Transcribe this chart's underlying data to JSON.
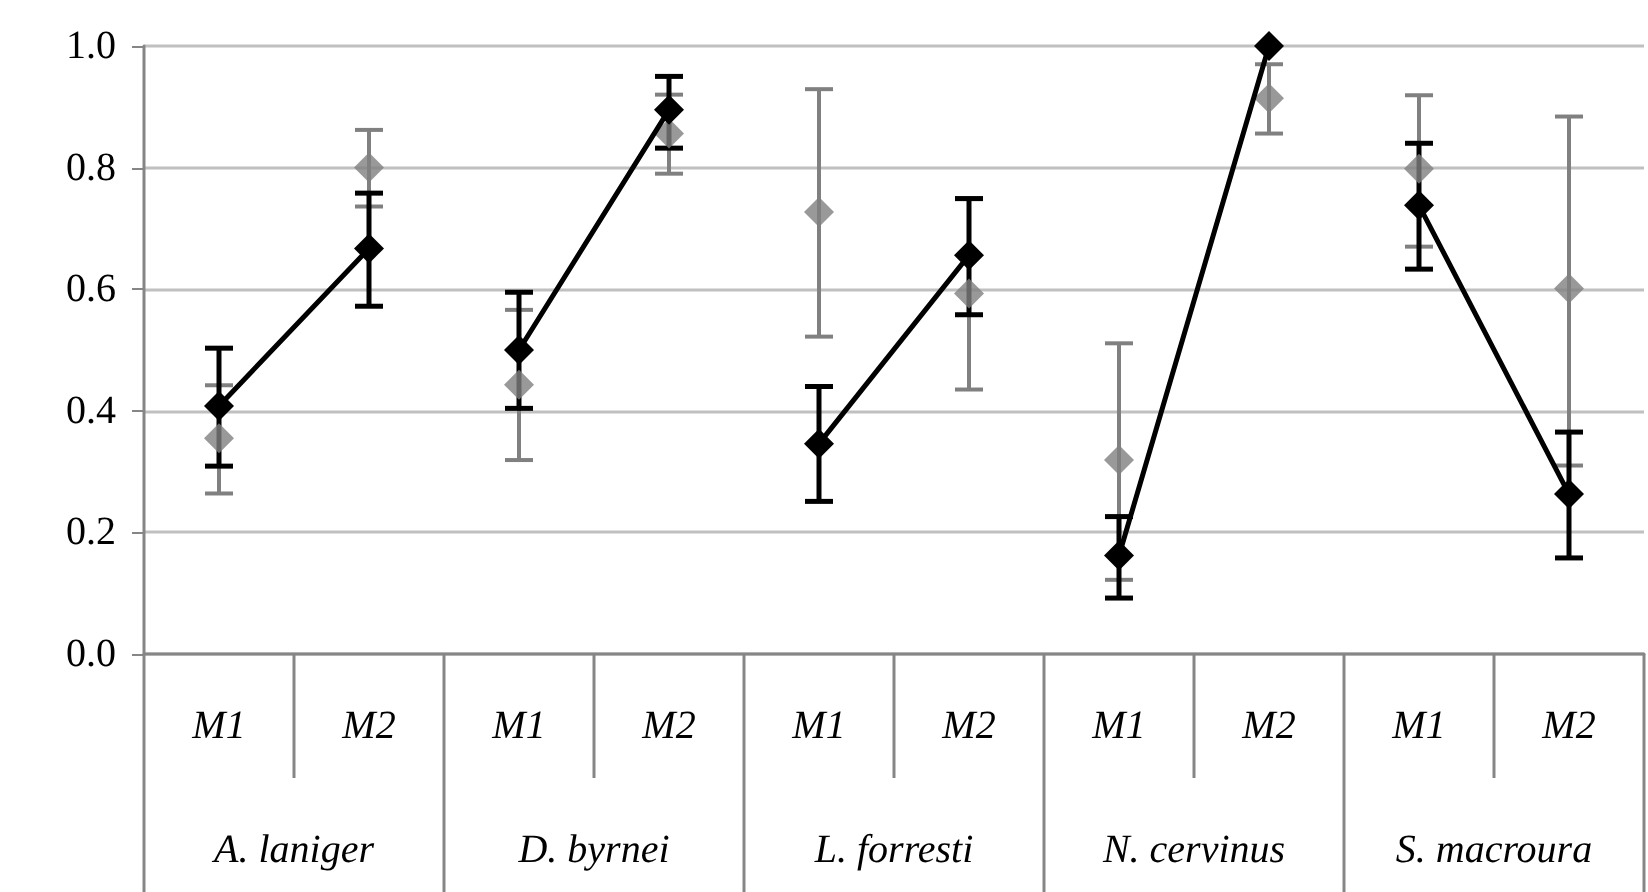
{
  "chart_data": {
    "type": "line",
    "categories": [
      "M1",
      "M2",
      "M1",
      "M2",
      "M1",
      "M2",
      "M1",
      "M2",
      "M1",
      "M2"
    ],
    "annotations": [
      "A. laniger",
      "D. byrnei",
      "L. forresti",
      "N. cervinus",
      "S. macroura"
    ],
    "ylim": [
      0,
      1
    ],
    "yticks": [
      {
        "value": 0,
        "label": "0.0"
      },
      {
        "value": 0.2,
        "label": "0.2"
      },
      {
        "value": 0.4,
        "label": "0.4"
      },
      {
        "value": 0.6,
        "label": "0.6"
      },
      {
        "value": 0.8,
        "label": "0.8"
      },
      {
        "value": 1,
        "label": "1.0"
      }
    ],
    "grid": "y",
    "marker": "diamond",
    "line_style": "solid",
    "series": [
      {
        "type": "scatter",
        "color": "#808080",
        "values": [
          0.355,
          0.8,
          0.443,
          0.856,
          0.727,
          0.593,
          0.319,
          0.914,
          0.798,
          0.601
        ],
        "errors": [
          [
            0.264,
            0.442
          ],
          [
            0.736,
            0.862
          ],
          [
            0.319,
            0.566
          ],
          [
            0.79,
            0.92
          ],
          [
            0.522,
            0.929
          ],
          [
            0.435,
            0.75
          ],
          [
            0.122,
            0.511
          ],
          [
            0.856,
            0.97
          ],
          [
            0.67,
            0.919
          ],
          [
            0.31,
            0.884
          ]
        ]
      },
      {
        "color": "#000000",
        "values": [
          0.408,
          0.667,
          null,
          null,
          null,
          null,
          null,
          null,
          null,
          null
        ],
        "errors": [
          [
            0.309,
            0.503
          ],
          [
            0.572,
            0.758
          ],
          null,
          null,
          null,
          null,
          null,
          null,
          null,
          null
        ]
      },
      {
        "color": "#000000",
        "values": [
          null,
          null,
          0.5,
          0.895,
          null,
          null,
          null,
          null,
          null,
          null
        ],
        "errors": [
          null,
          null,
          [
            0.404,
            0.595
          ],
          [
            0.832,
            0.95
          ],
          null,
          null,
          null,
          null,
          null,
          null
        ]
      },
      {
        "color": "#000000",
        "values": [
          null,
          null,
          null,
          null,
          0.346,
          0.656,
          null,
          null,
          null,
          null
        ],
        "errors": [
          null,
          null,
          null,
          null,
          [
            0.251,
            0.44
          ],
          [
            0.558,
            0.749
          ],
          null,
          null,
          null,
          null
        ]
      },
      {
        "color": "#000000",
        "values": [
          null,
          null,
          null,
          null,
          null,
          null,
          0.162,
          1.0,
          null,
          null
        ],
        "errors": [
          null,
          null,
          null,
          null,
          null,
          null,
          [
            0.092,
            0.226
          ],
          null,
          null,
          null
        ]
      },
      {
        "color": "#000000",
        "values": [
          null,
          null,
          null,
          null,
          null,
          null,
          null,
          null,
          0.738,
          0.263
        ],
        "errors": [
          null,
          null,
          null,
          null,
          null,
          null,
          null,
          null,
          [
            0.633,
            0.84
          ],
          [
            0.158,
            0.365
          ]
        ]
      }
    ]
  }
}
